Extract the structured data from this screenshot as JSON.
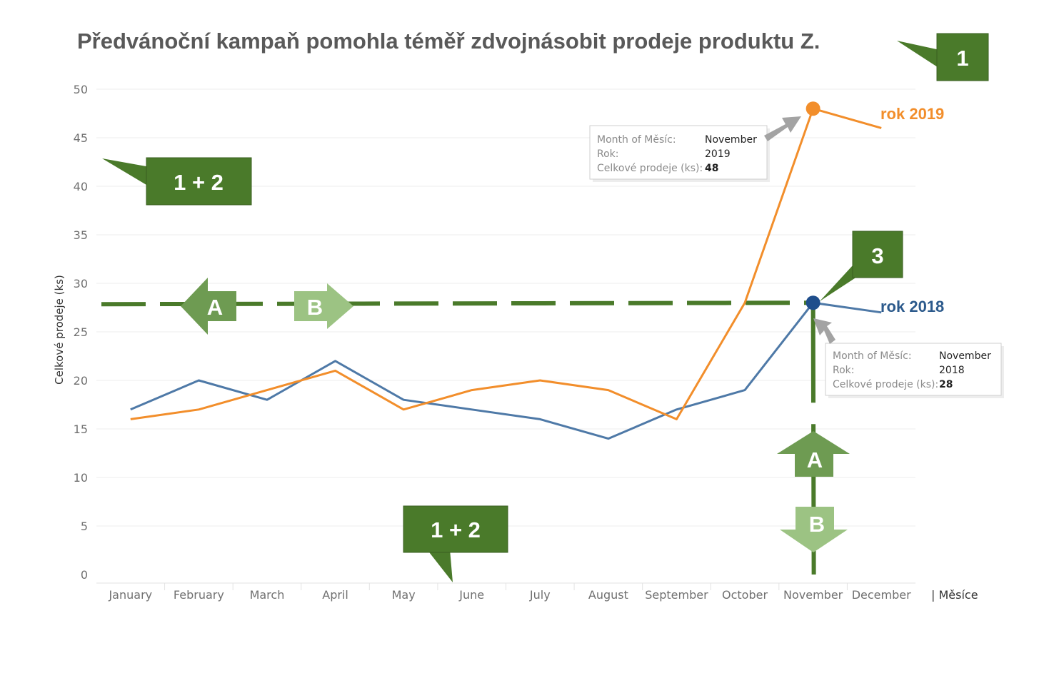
{
  "chart_data": {
    "type": "line",
    "title": "Předvánoční kampaň pomohla téměř zdvojnásobit prodeje produktu Z.",
    "xlabel": "| Měsíce",
    "ylabel": "Celkové prodeje (ks)",
    "ylim": [
      0,
      50
    ],
    "yticks": [
      0,
      5,
      10,
      15,
      20,
      25,
      30,
      35,
      40,
      45,
      50
    ],
    "grid": true,
    "categories": [
      "January",
      "February",
      "March",
      "April",
      "May",
      "June",
      "July",
      "August",
      "September",
      "October",
      "November",
      "December"
    ],
    "series": [
      {
        "name": "rok 2018",
        "color": "#4e79a7",
        "values": [
          17,
          20,
          18,
          22,
          18,
          17,
          16,
          14,
          17,
          19,
          28,
          27
        ]
      },
      {
        "name": "rok 2019",
        "color": "#f28e2b",
        "values": [
          16,
          17,
          19,
          21,
          17,
          19,
          20,
          19,
          16,
          28,
          48,
          46
        ]
      }
    ],
    "reference_lines": {
      "horizontal_value": 28,
      "vertical_category": "November",
      "color": "#4a7a2a"
    },
    "tooltips": [
      {
        "month_key": "Month of Měsíc:",
        "month": "November",
        "year_key": "Rok:",
        "year": "2019",
        "sales_key": "Celkové prodeje (ks):",
        "sales": "48"
      },
      {
        "month_key": "Month of Měsíc:",
        "month": "November",
        "year_key": "Rok:",
        "year": "2018",
        "sales_key": "Celkové prodeje (ks):",
        "sales": "28"
      }
    ],
    "annotations": {
      "callout_top": "1",
      "callout_left": "1 + 2",
      "callout_bottom": "1 + 2",
      "callout_point": "3",
      "arrows": [
        "A",
        "B",
        "A",
        "B"
      ],
      "callout_color": "#4a7a2a",
      "arrow_dark_color": "#6e9b52",
      "arrow_light_color": "#9cc383"
    }
  }
}
